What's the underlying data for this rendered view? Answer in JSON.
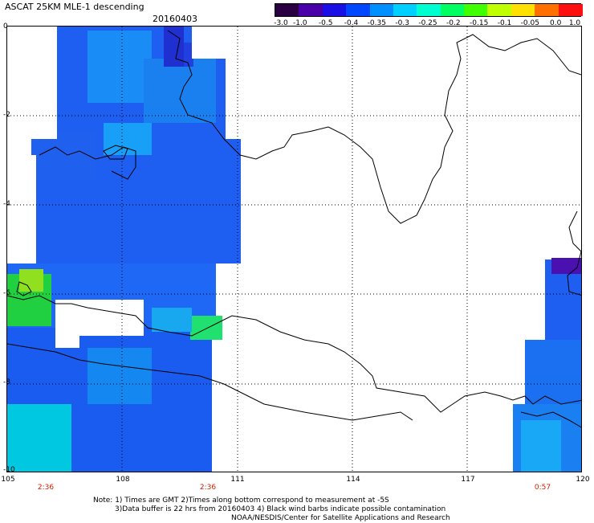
{
  "header": {
    "title": "ASCAT 25KM MLE-1 descending",
    "date": "20160403"
  },
  "colorbar": {
    "labels": [
      "-3.0",
      "-1.0",
      "-0.5",
      "-0.4",
      "-0.35",
      "-0.3",
      "-0.25",
      "-0.2",
      "-0.15",
      "-0.1",
      "-0.05",
      "0.0",
      "1.0"
    ],
    "colors": [
      "#2b0040",
      "#4a00a8",
      "#1a10e6",
      "#0048ff",
      "#0090ff",
      "#00d0ff",
      "#00ffd0",
      "#00ff60",
      "#40ff00",
      "#c0ff00",
      "#ffe000",
      "#ff7000",
      "#ff1010"
    ]
  },
  "axes": {
    "y_labels": [
      "0",
      "-2",
      "-4",
      "-6",
      "-8",
      "-10"
    ],
    "x_labels": [
      "105",
      "108",
      "111",
      "114",
      "117",
      "120"
    ],
    "time_labels": [
      "2:36",
      "2:36",
      "0:57"
    ]
  },
  "notes": {
    "line1": "Note: 1) Times are GMT 2)Times along bottom correspond to measurement at -5S",
    "line2": "3)Data buffer is 22 hrs from 20160403 4) Black wind barbs indicate possible contamination",
    "line3": "NOAA/NESDIS/Center for Satellite Applications and Research"
  },
  "map": {
    "swath_color": "#1e5ef0",
    "land_outline_color": "#000000",
    "grid_color": "#000000"
  }
}
